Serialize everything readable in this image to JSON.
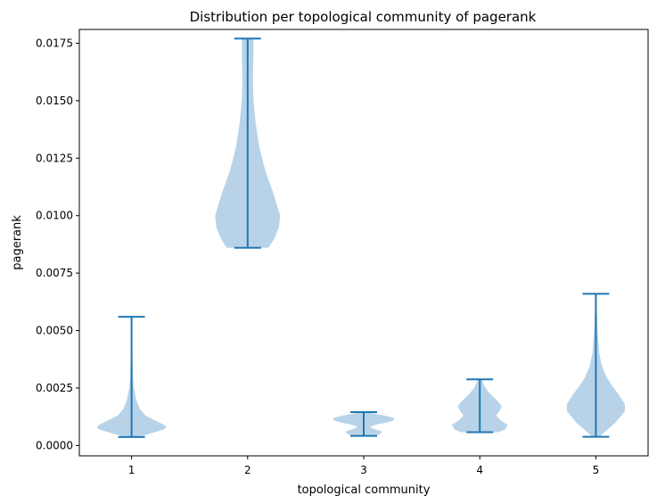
{
  "chart_data": {
    "type": "violin",
    "title": "Distribution per topological community of pagerank",
    "xlabel": "topological community",
    "ylabel": "pagerank",
    "ylim": [
      -0.00045,
      0.0181
    ],
    "xlim": [
      0.55,
      5.45
    ],
    "yticks": [
      "0.0000",
      "0.0025",
      "0.0050",
      "0.0075",
      "0.0100",
      "0.0125",
      "0.0150",
      "0.0175"
    ],
    "categories": [
      "1",
      "2",
      "3",
      "4",
      "5"
    ],
    "grid": false,
    "colors": {
      "body": "#b8d3e8",
      "lines": "#1f77b4"
    },
    "series": [
      {
        "category": "1",
        "min": 0.00037,
        "max": 0.0056,
        "profile": [
          [
            0.00037,
            0.06
          ],
          [
            0.0005,
            0.15
          ],
          [
            0.0007,
            0.28
          ],
          [
            0.0008,
            0.3
          ],
          [
            0.0009,
            0.28
          ],
          [
            0.0011,
            0.2
          ],
          [
            0.0013,
            0.12
          ],
          [
            0.0016,
            0.07
          ],
          [
            0.002,
            0.04
          ],
          [
            0.0025,
            0.02
          ],
          [
            0.003,
            0.012
          ],
          [
            0.004,
            0.006
          ],
          [
            0.005,
            0.004
          ],
          [
            0.0056,
            0.003
          ]
        ]
      },
      {
        "category": "2",
        "min": 0.0086,
        "max": 0.0177,
        "profile": [
          [
            0.0086,
            0.18
          ],
          [
            0.009,
            0.23
          ],
          [
            0.0095,
            0.27
          ],
          [
            0.01,
            0.28
          ],
          [
            0.0105,
            0.25
          ],
          [
            0.011,
            0.22
          ],
          [
            0.012,
            0.15
          ],
          [
            0.013,
            0.1
          ],
          [
            0.014,
            0.07
          ],
          [
            0.015,
            0.05
          ],
          [
            0.016,
            0.045
          ],
          [
            0.017,
            0.05
          ],
          [
            0.0177,
            0.05
          ]
        ]
      },
      {
        "category": "3",
        "min": 0.00042,
        "max": 0.00145,
        "profile": [
          [
            0.00042,
            0.1
          ],
          [
            0.0005,
            0.14
          ],
          [
            0.0006,
            0.16
          ],
          [
            0.0007,
            0.1
          ],
          [
            0.0008,
            0.05
          ],
          [
            0.0009,
            0.1
          ],
          [
            0.001,
            0.2
          ],
          [
            0.0011,
            0.26
          ],
          [
            0.0012,
            0.26
          ],
          [
            0.0013,
            0.18
          ],
          [
            0.0014,
            0.07
          ],
          [
            0.00145,
            0.04
          ]
        ]
      },
      {
        "category": "4",
        "min": 0.00058,
        "max": 0.00288,
        "profile": [
          [
            0.00058,
            0.16
          ],
          [
            0.0007,
            0.22
          ],
          [
            0.0009,
            0.24
          ],
          [
            0.0011,
            0.18
          ],
          [
            0.0013,
            0.14
          ],
          [
            0.0015,
            0.17
          ],
          [
            0.0017,
            0.19
          ],
          [
            0.0019,
            0.16
          ],
          [
            0.0021,
            0.12
          ],
          [
            0.0023,
            0.08
          ],
          [
            0.0025,
            0.05
          ],
          [
            0.0027,
            0.03
          ],
          [
            0.00288,
            0.02
          ]
        ]
      },
      {
        "category": "5",
        "min": 0.00038,
        "max": 0.0066,
        "profile": [
          [
            0.00038,
            0.03
          ],
          [
            0.0006,
            0.08
          ],
          [
            0.001,
            0.17
          ],
          [
            0.0015,
            0.25
          ],
          [
            0.0018,
            0.25
          ],
          [
            0.0022,
            0.2
          ],
          [
            0.0026,
            0.14
          ],
          [
            0.003,
            0.09
          ],
          [
            0.0035,
            0.05
          ],
          [
            0.004,
            0.03
          ],
          [
            0.005,
            0.015
          ],
          [
            0.006,
            0.007
          ],
          [
            0.0066,
            0.004
          ]
        ]
      }
    ]
  }
}
